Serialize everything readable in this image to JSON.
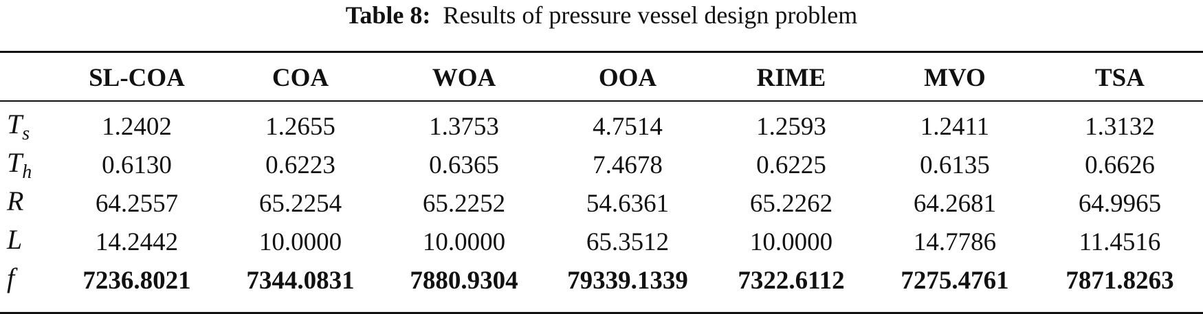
{
  "caption": {
    "label": "Table 8:",
    "text": "Results of pressure vessel design problem"
  },
  "columns": [
    "SL-COA",
    "COA",
    "WOA",
    "OOA",
    "RIME",
    "MVO",
    "TSA"
  ],
  "rows": [
    {
      "symbol": "T",
      "sub": "s",
      "values": [
        "1.2402",
        "1.2655",
        "1.3753",
        "4.7514",
        "1.2593",
        "1.2411",
        "1.3132"
      ]
    },
    {
      "symbol": "T",
      "sub": "h",
      "values": [
        "0.6130",
        "0.6223",
        "0.6365",
        "7.4678",
        "0.6225",
        "0.6135",
        "0.6626"
      ]
    },
    {
      "symbol": "R",
      "sub": "",
      "values": [
        "64.2557",
        "65.2254",
        "65.2252",
        "54.6361",
        "65.2262",
        "64.2681",
        "64.9965"
      ]
    },
    {
      "symbol": "L",
      "sub": "",
      "values": [
        "14.2442",
        "10.0000",
        "10.0000",
        "65.3512",
        "10.0000",
        "14.7786",
        "11.4516"
      ]
    },
    {
      "symbol": "f",
      "sub": "",
      "values": [
        "7236.8021",
        "7344.0831",
        "7880.9304",
        "79339.1339",
        "7322.6112",
        "7275.4761",
        "7871.8263"
      ]
    }
  ]
}
